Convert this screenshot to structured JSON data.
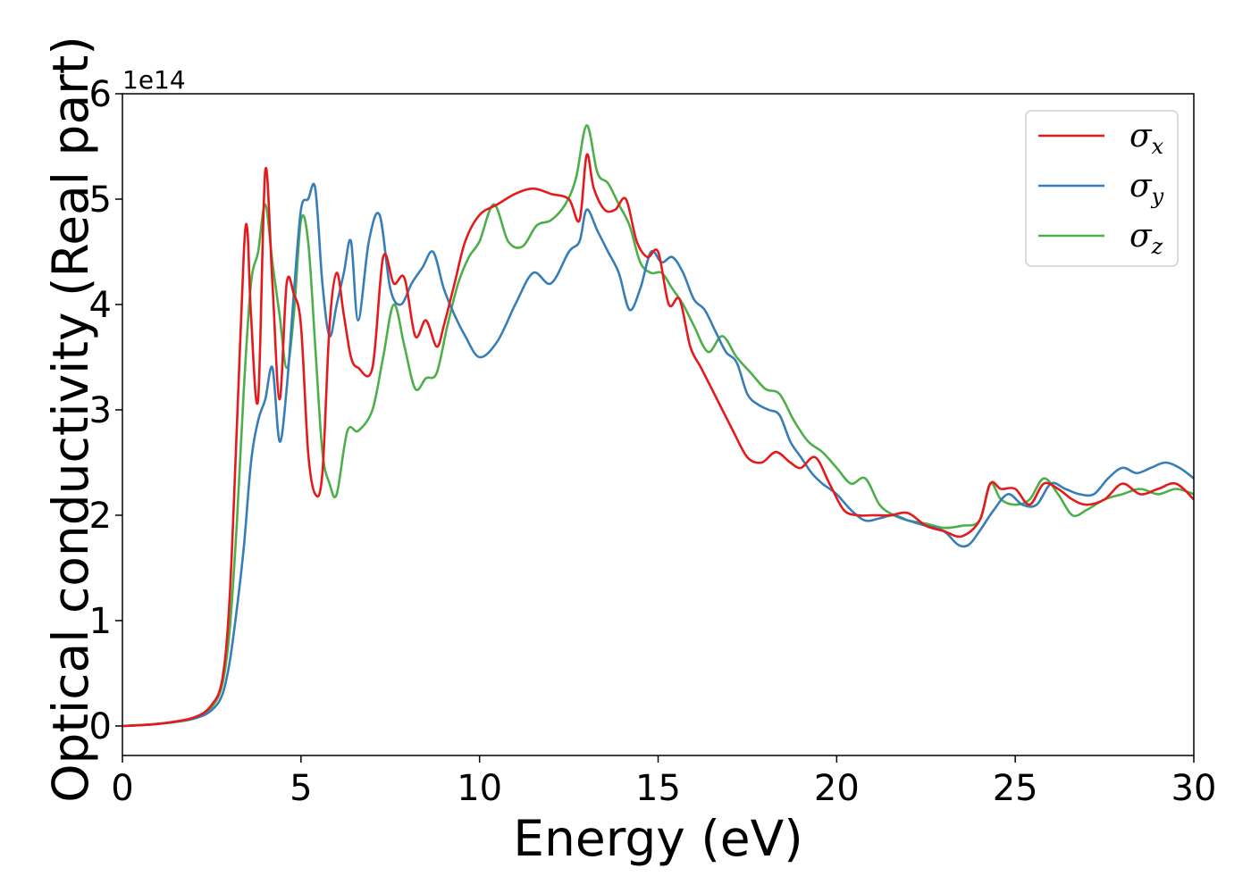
{
  "chart_data": {
    "type": "line",
    "title": "",
    "xlabel": "Energy (eV)",
    "ylabel": "Optical conductivity (Real part)",
    "y_offset_label": "1e14",
    "xlim": [
      0,
      30
    ],
    "ylim": [
      -0.28,
      6
    ],
    "x_ticks": [
      0,
      5,
      10,
      15,
      20,
      25,
      30
    ],
    "y_ticks": [
      0,
      1,
      2,
      3,
      4,
      5,
      6
    ],
    "grid": false,
    "legend_position": "top-right",
    "series": [
      {
        "name": "σx",
        "symbol": "σ",
        "subscript": "x",
        "color": "#e41a1c",
        "x": [
          0,
          1,
          2,
          2.5,
          2.8,
          3.0,
          3.2,
          3.4,
          3.5,
          3.6,
          3.8,
          4.0,
          4.2,
          4.4,
          4.6,
          4.8,
          5.0,
          5.2,
          5.4,
          5.6,
          5.8,
          6.0,
          6.2,
          6.4,
          6.6,
          7.0,
          7.3,
          7.6,
          7.9,
          8.2,
          8.5,
          8.8,
          9.0,
          9.3,
          9.6,
          10.0,
          10.5,
          11.0,
          11.5,
          12.0,
          12.5,
          12.8,
          13.0,
          13.2,
          13.5,
          13.8,
          14.1,
          14.4,
          14.7,
          15.0,
          15.3,
          15.6,
          15.9,
          16.2,
          16.5,
          16.8,
          17.1,
          17.5,
          17.9,
          18.3,
          18.7,
          19.0,
          19.4,
          19.8,
          20.2,
          20.6,
          21.0,
          21.5,
          22.0,
          22.5,
          23.0,
          23.5,
          24.0,
          24.3,
          24.6,
          25.0,
          25.4,
          25.8,
          26.2,
          26.6,
          27.0,
          27.5,
          28.0,
          28.5,
          29.0,
          29.5,
          30.0
        ],
        "y": [
          0,
          0.02,
          0.08,
          0.2,
          0.45,
          1.2,
          2.8,
          4.5,
          4.7,
          3.9,
          3.1,
          5.27,
          4.2,
          3.1,
          4.2,
          4.1,
          3.8,
          2.6,
          2.2,
          2.4,
          3.8,
          4.3,
          3.9,
          3.5,
          3.4,
          3.4,
          4.45,
          4.2,
          4.25,
          3.7,
          3.85,
          3.6,
          3.8,
          4.2,
          4.6,
          4.85,
          4.95,
          5.05,
          5.1,
          5.05,
          5.0,
          4.8,
          5.42,
          5.1,
          4.9,
          4.9,
          5.0,
          4.6,
          4.45,
          4.5,
          4.0,
          4.05,
          3.6,
          3.4,
          3.2,
          3.0,
          2.8,
          2.55,
          2.5,
          2.6,
          2.5,
          2.45,
          2.55,
          2.3,
          2.05,
          2.0,
          2.0,
          2.0,
          2.02,
          1.9,
          1.85,
          1.8,
          1.95,
          2.3,
          2.25,
          2.25,
          2.1,
          2.3,
          2.25,
          2.15,
          2.1,
          2.15,
          2.3,
          2.2,
          2.25,
          2.3,
          2.15
        ]
      },
      {
        "name": "σy",
        "symbol": "σ",
        "subscript": "y",
        "color": "#377eb8",
        "x": [
          0,
          1,
          2,
          2.5,
          2.8,
          3.0,
          3.2,
          3.4,
          3.6,
          3.8,
          4.0,
          4.2,
          4.4,
          4.6,
          4.8,
          5.0,
          5.2,
          5.4,
          5.6,
          5.8,
          6.0,
          6.2,
          6.4,
          6.6,
          6.9,
          7.2,
          7.5,
          7.8,
          8.1,
          8.4,
          8.7,
          9.0,
          9.3,
          9.6,
          10.0,
          10.5,
          11.0,
          11.5,
          12.0,
          12.5,
          12.8,
          13.0,
          13.3,
          13.6,
          13.9,
          14.2,
          14.5,
          14.8,
          15.1,
          15.4,
          15.7,
          16.0,
          16.3,
          16.6,
          16.9,
          17.2,
          17.5,
          17.8,
          18.1,
          18.4,
          18.7,
          19.0,
          19.3,
          19.6,
          20.0,
          20.4,
          20.8,
          21.2,
          21.6,
          22.0,
          22.5,
          23.0,
          23.4,
          23.7,
          24.0,
          24.4,
          24.8,
          25.2,
          25.6,
          26.0,
          26.4,
          26.8,
          27.2,
          27.6,
          28.0,
          28.4,
          28.8,
          29.2,
          29.6,
          30.0
        ],
        "y": [
          0,
          0.02,
          0.07,
          0.15,
          0.3,
          0.6,
          1.1,
          1.7,
          2.5,
          2.9,
          3.1,
          3.4,
          2.7,
          3.2,
          4.1,
          4.9,
          5.0,
          5.1,
          4.2,
          3.7,
          4.0,
          4.3,
          4.6,
          3.85,
          4.6,
          4.85,
          4.15,
          4.0,
          4.2,
          4.35,
          4.5,
          4.15,
          3.9,
          3.7,
          3.5,
          3.65,
          4.0,
          4.3,
          4.2,
          4.5,
          4.6,
          4.9,
          4.7,
          4.5,
          4.3,
          3.95,
          4.15,
          4.5,
          4.4,
          4.45,
          4.3,
          4.05,
          3.95,
          3.75,
          3.55,
          3.45,
          3.15,
          3.05,
          3.0,
          2.95,
          2.7,
          2.55,
          2.4,
          2.3,
          2.2,
          2.05,
          1.95,
          1.97,
          2.0,
          1.95,
          1.9,
          1.85,
          1.72,
          1.72,
          1.85,
          2.05,
          2.2,
          2.1,
          2.1,
          2.3,
          2.25,
          2.2,
          2.2,
          2.35,
          2.45,
          2.4,
          2.45,
          2.5,
          2.45,
          2.35
        ]
      },
      {
        "name": "σz",
        "symbol": "σ",
        "subscript": "z",
        "color": "#4daf4a",
        "x": [
          0,
          1,
          2,
          2.5,
          2.8,
          3.0,
          3.2,
          3.4,
          3.6,
          3.8,
          4.0,
          4.2,
          4.4,
          4.6,
          4.8,
          5.0,
          5.2,
          5.4,
          5.6,
          5.8,
          6.0,
          6.3,
          6.6,
          7.0,
          7.3,
          7.6,
          7.9,
          8.2,
          8.5,
          8.8,
          9.1,
          9.4,
          9.7,
          10.0,
          10.4,
          10.8,
          11.2,
          11.6,
          12.0,
          12.4,
          12.7,
          13.0,
          13.3,
          13.6,
          13.9,
          14.2,
          14.5,
          14.8,
          15.1,
          15.4,
          15.7,
          16.0,
          16.4,
          16.8,
          17.2,
          17.6,
          18.0,
          18.4,
          18.8,
          19.2,
          19.6,
          20.0,
          20.4,
          20.8,
          21.2,
          21.6,
          22.0,
          22.5,
          23.0,
          23.5,
          24.0,
          24.3,
          24.6,
          25.0,
          25.4,
          25.8,
          26.2,
          26.6,
          27.0,
          27.5,
          28.0,
          28.5,
          29.0,
          29.5,
          30.0
        ],
        "y": [
          0,
          0.02,
          0.07,
          0.18,
          0.4,
          0.9,
          1.9,
          3.2,
          4.2,
          4.5,
          4.95,
          4.4,
          3.9,
          3.4,
          3.9,
          4.8,
          4.6,
          3.6,
          2.6,
          2.3,
          2.2,
          2.8,
          2.8,
          3.0,
          3.5,
          4.0,
          3.6,
          3.2,
          3.3,
          3.35,
          3.8,
          4.2,
          4.45,
          4.6,
          4.95,
          4.6,
          4.55,
          4.75,
          4.8,
          4.95,
          5.2,
          5.7,
          5.25,
          5.15,
          4.95,
          4.75,
          4.4,
          4.3,
          4.3,
          4.15,
          4.0,
          3.8,
          3.55,
          3.7,
          3.5,
          3.35,
          3.2,
          3.15,
          2.9,
          2.7,
          2.6,
          2.45,
          2.3,
          2.35,
          2.1,
          2.0,
          1.95,
          1.92,
          1.88,
          1.9,
          1.95,
          2.3,
          2.15,
          2.1,
          2.15,
          2.35,
          2.2,
          2.0,
          2.05,
          2.15,
          2.2,
          2.25,
          2.2,
          2.25,
          2.2
        ]
      }
    ]
  }
}
